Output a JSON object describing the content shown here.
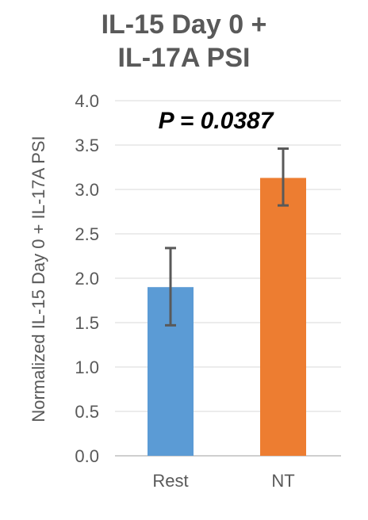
{
  "chart_data": {
    "type": "bar",
    "title_lines": [
      "IL-15 Day 0 +",
      "IL-17A PSI"
    ],
    "ylabel": "Normalized IL-15 Day 0 + IL-17A PSI",
    "xlabel": "",
    "categories": [
      "Rest",
      "NT"
    ],
    "values": [
      1.9,
      3.13
    ],
    "error_low": [
      1.47,
      2.82
    ],
    "error_high": [
      2.34,
      3.46
    ],
    "colors": [
      "#5b9bd5",
      "#ed7d31"
    ],
    "ylim": [
      0,
      4.0
    ],
    "yticks": [
      "0.0",
      "0.5",
      "1.0",
      "1.5",
      "2.0",
      "2.5",
      "3.0",
      "3.5",
      "4.0"
    ],
    "grid": true,
    "annotation": "P = 0.0387"
  }
}
